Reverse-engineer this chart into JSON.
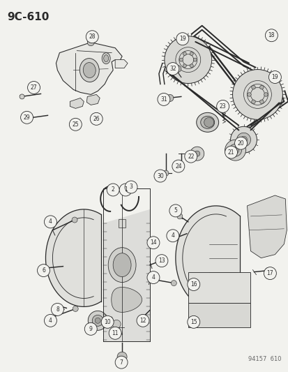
{
  "title_code": "9C-610",
  "footer_code": "94157  610",
  "bg": "#f5f5f0",
  "lc": "#2a2a2a",
  "tc": "#2a2a2a",
  "fig_width": 4.14,
  "fig_height": 5.33,
  "dpi": 100
}
